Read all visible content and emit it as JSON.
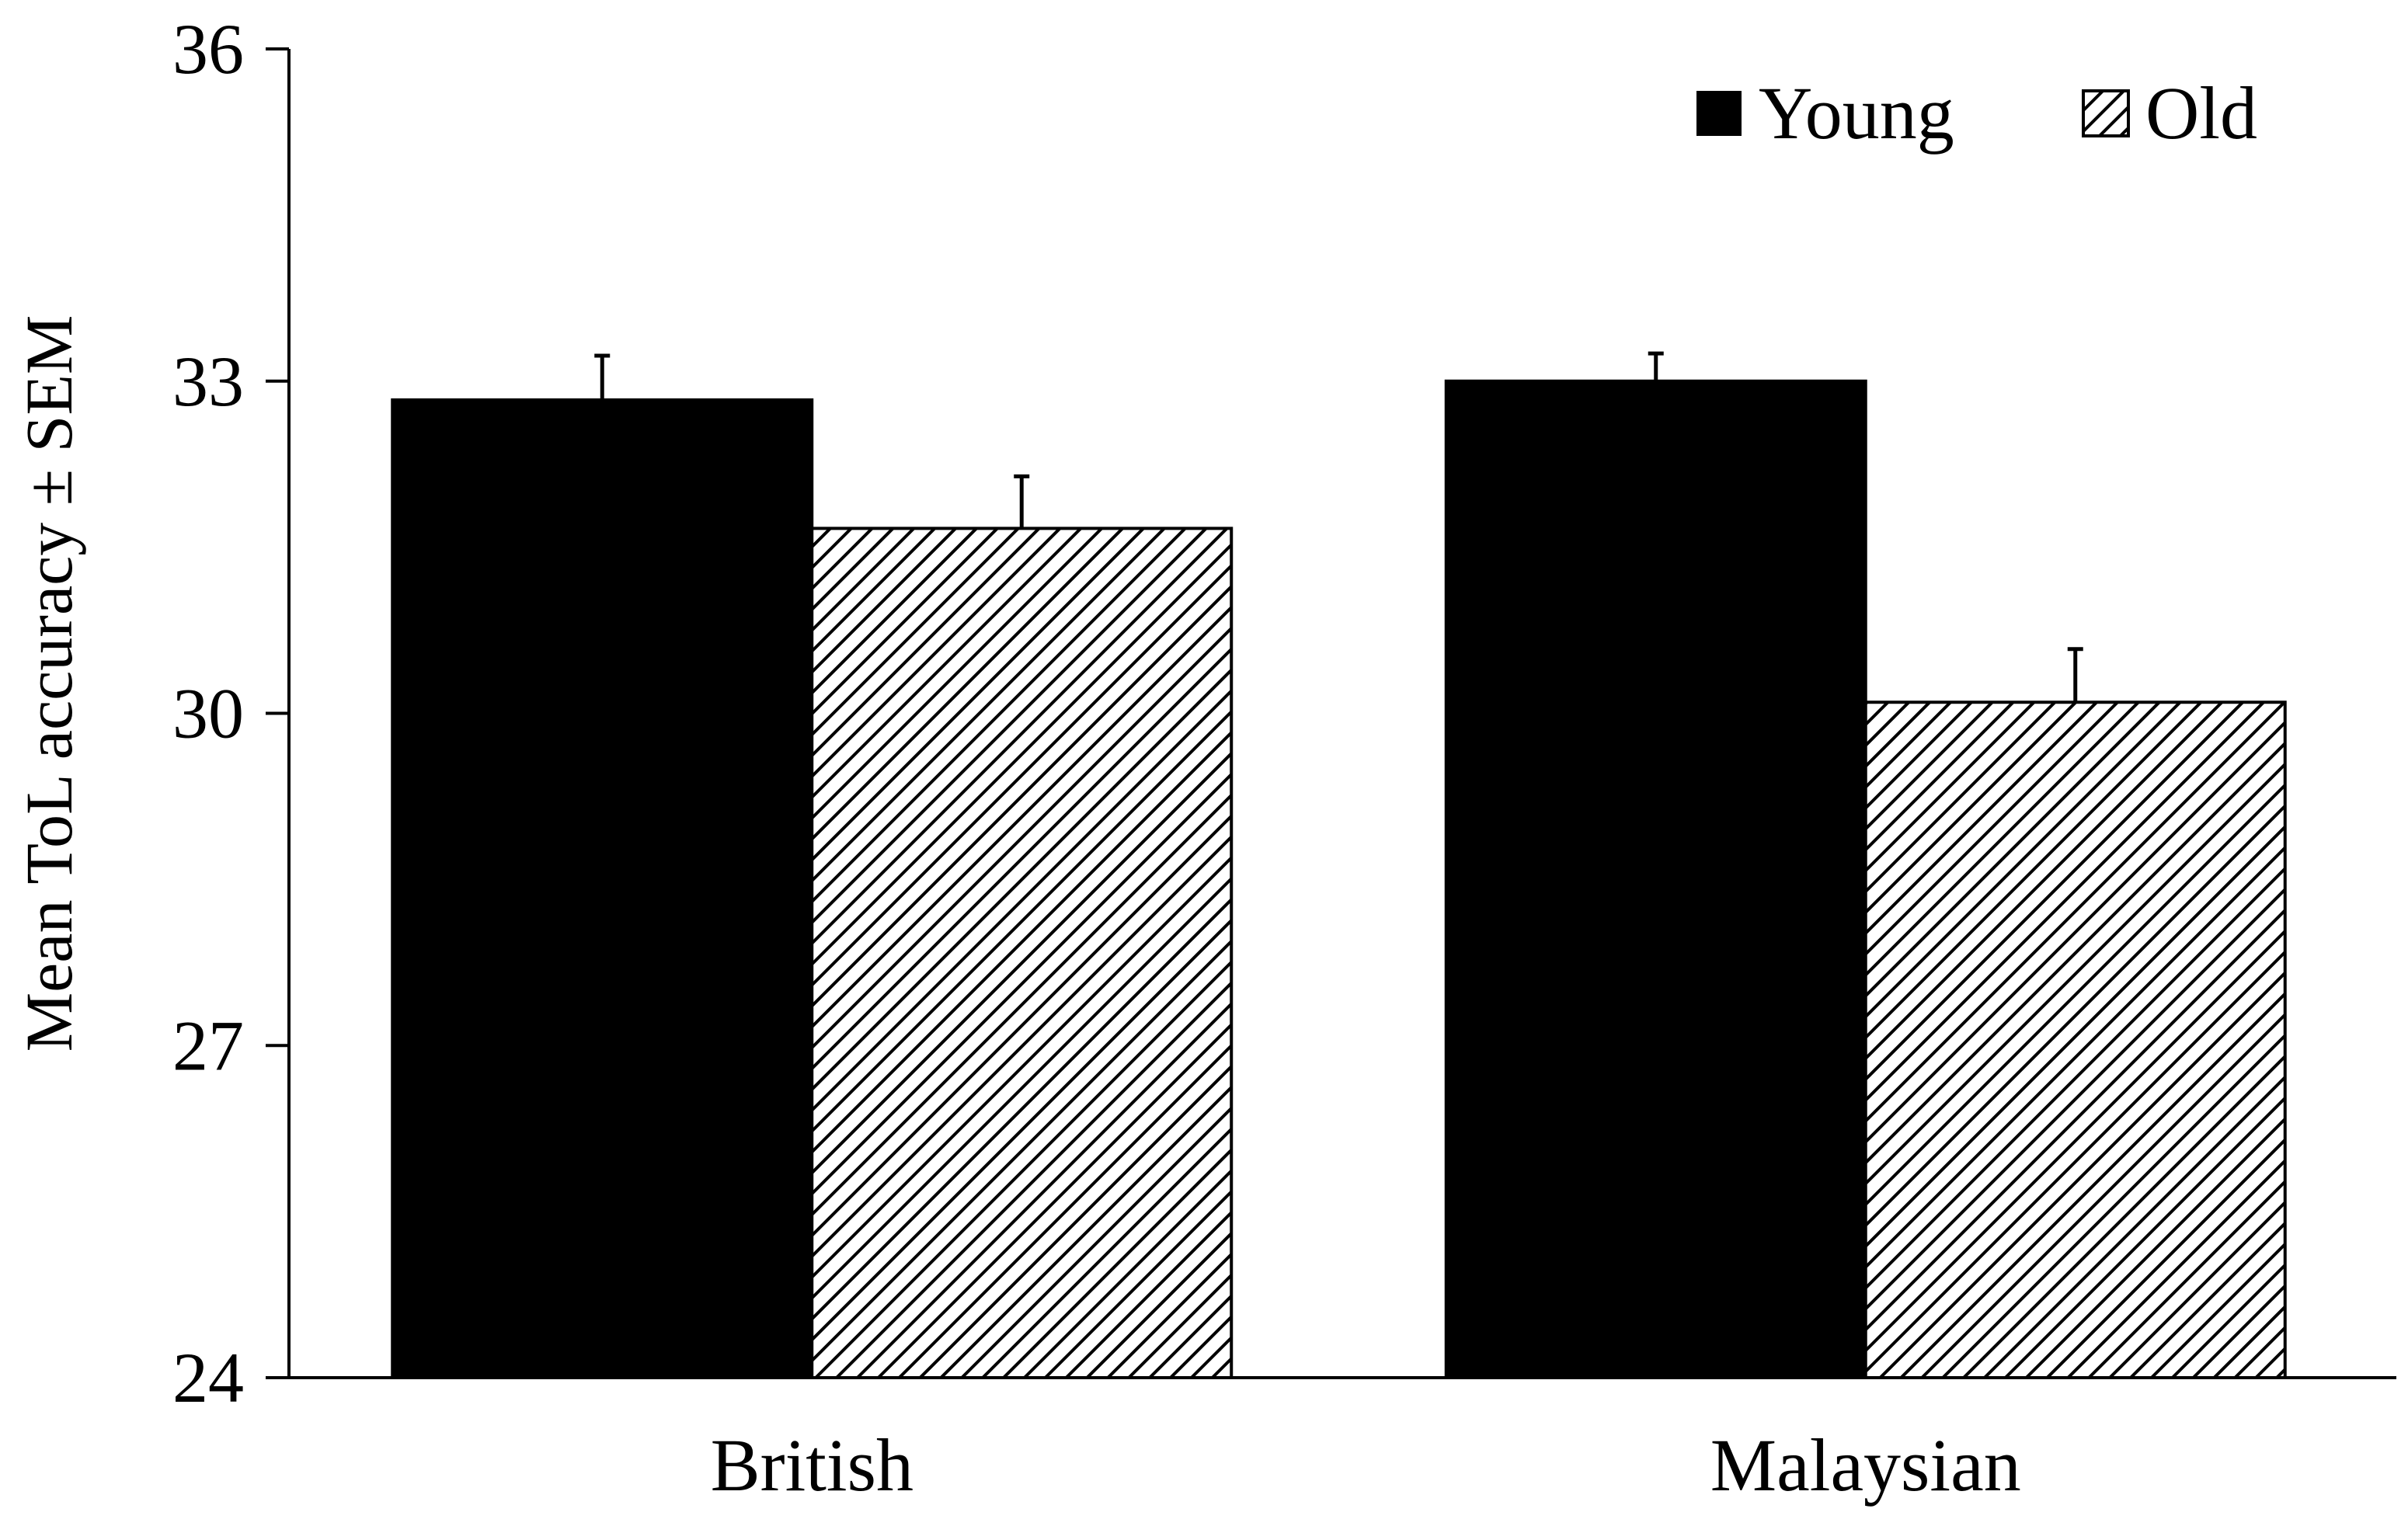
{
  "chart_data": {
    "type": "bar",
    "categories": [
      "British",
      "Malaysian"
    ],
    "series": [
      {
        "name": "Young",
        "values": [
          32.83,
          33.0
        ],
        "errors": [
          0.4,
          0.25
        ],
        "color": "#000000",
        "pattern": "solid"
      },
      {
        "name": "Old",
        "values": [
          31.67,
          30.1
        ],
        "errors": [
          0.47,
          0.48
        ],
        "color": "#000000",
        "pattern": "diagonal-hatch"
      }
    ],
    "title": "",
    "xlabel": "",
    "ylabel": "Mean ToL accuracy ± SEM",
    "ylim": [
      24,
      36
    ],
    "yticks": [
      "24",
      "27",
      "30",
      "33",
      "36"
    ],
    "grid": false,
    "legend_position": "top-right"
  }
}
